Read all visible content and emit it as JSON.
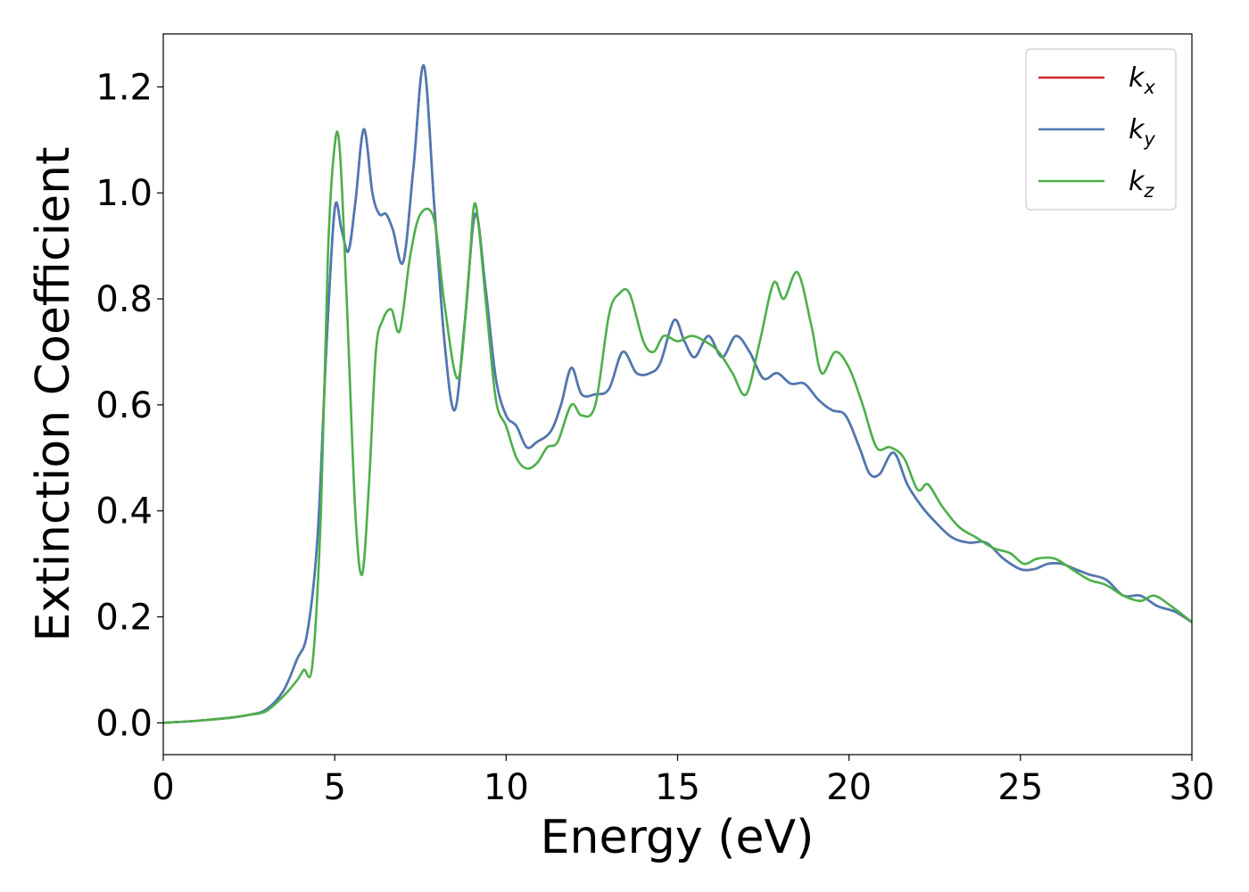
{
  "chart_data": {
    "type": "line",
    "title": "",
    "xlabel": "Energy (eV)",
    "ylabel": "Extinction Coefficient",
    "xlim": [
      0,
      30
    ],
    "ylim": [
      -0.06,
      1.3
    ],
    "xticks": [
      0,
      5,
      10,
      15,
      20,
      25,
      30
    ],
    "xtick_labels": [
      "0",
      "5",
      "10",
      "15",
      "20",
      "25",
      "30"
    ],
    "yticks": [
      0.0,
      0.2,
      0.4,
      0.6,
      0.8,
      1.0,
      1.2
    ],
    "ytick_labels": [
      "0.0",
      "0.2",
      "0.4",
      "0.6",
      "0.8",
      "1.0",
      "1.2"
    ],
    "grid": false,
    "legend_position": "top-right",
    "series": [
      {
        "name": "k_x",
        "label_base": "k",
        "label_sub": "x",
        "color": "#d62728",
        "x": [
          0,
          1,
          2,
          2.5,
          3.0,
          3.5,
          3.9,
          4.2,
          4.5,
          4.75,
          5.0,
          5.2,
          5.4,
          5.6,
          5.85,
          6.1,
          6.3,
          6.5,
          6.7,
          7.0,
          7.3,
          7.6,
          7.9,
          8.2,
          8.5,
          8.8,
          9.1,
          9.4,
          9.7,
          10.0,
          10.3,
          10.6,
          10.9,
          11.3,
          11.6,
          11.9,
          12.2,
          12.6,
          13.0,
          13.4,
          13.8,
          14.2,
          14.5,
          14.9,
          15.2,
          15.5,
          15.9,
          16.3,
          16.7,
          17.1,
          17.5,
          17.9,
          18.3,
          18.7,
          19.1,
          19.5,
          19.9,
          20.3,
          20.6,
          20.9,
          21.3,
          21.7,
          22.1,
          22.5,
          23.0,
          23.5,
          24.0,
          24.5,
          25.0,
          25.4,
          25.8,
          26.2,
          26.6,
          27.0,
          27.5,
          28.0,
          28.5,
          29.0,
          29.5,
          30.0
        ],
        "y": [
          0.0,
          0.004,
          0.01,
          0.015,
          0.025,
          0.06,
          0.12,
          0.17,
          0.35,
          0.7,
          0.97,
          0.93,
          0.89,
          0.98,
          1.12,
          1.0,
          0.96,
          0.96,
          0.93,
          0.87,
          1.05,
          1.24,
          0.98,
          0.72,
          0.59,
          0.76,
          0.96,
          0.82,
          0.65,
          0.58,
          0.56,
          0.52,
          0.53,
          0.55,
          0.6,
          0.67,
          0.62,
          0.62,
          0.63,
          0.7,
          0.66,
          0.66,
          0.68,
          0.76,
          0.72,
          0.69,
          0.73,
          0.69,
          0.73,
          0.7,
          0.65,
          0.66,
          0.64,
          0.64,
          0.61,
          0.59,
          0.58,
          0.52,
          0.47,
          0.47,
          0.51,
          0.45,
          0.41,
          0.38,
          0.35,
          0.34,
          0.34,
          0.31,
          0.29,
          0.29,
          0.3,
          0.3,
          0.29,
          0.28,
          0.27,
          0.24,
          0.24,
          0.22,
          0.21,
          0.19
        ]
      },
      {
        "name": "k_y",
        "label_base": "k",
        "label_sub": "y",
        "color": "#4a7ab5",
        "x": [
          0,
          1,
          2,
          2.5,
          3.0,
          3.5,
          3.9,
          4.2,
          4.5,
          4.75,
          5.0,
          5.2,
          5.4,
          5.6,
          5.85,
          6.1,
          6.3,
          6.5,
          6.7,
          7.0,
          7.3,
          7.6,
          7.9,
          8.2,
          8.5,
          8.8,
          9.1,
          9.4,
          9.7,
          10.0,
          10.3,
          10.6,
          10.9,
          11.3,
          11.6,
          11.9,
          12.2,
          12.6,
          13.0,
          13.4,
          13.8,
          14.2,
          14.5,
          14.9,
          15.2,
          15.5,
          15.9,
          16.3,
          16.7,
          17.1,
          17.5,
          17.9,
          18.3,
          18.7,
          19.1,
          19.5,
          19.9,
          20.3,
          20.6,
          20.9,
          21.3,
          21.7,
          22.1,
          22.5,
          23.0,
          23.5,
          24.0,
          24.5,
          25.0,
          25.4,
          25.8,
          26.2,
          26.6,
          27.0,
          27.5,
          28.0,
          28.5,
          29.0,
          29.5,
          30.0
        ],
        "y": [
          0.0,
          0.004,
          0.01,
          0.015,
          0.025,
          0.06,
          0.12,
          0.17,
          0.35,
          0.7,
          0.97,
          0.93,
          0.89,
          0.98,
          1.12,
          1.0,
          0.96,
          0.96,
          0.93,
          0.87,
          1.05,
          1.24,
          0.98,
          0.72,
          0.59,
          0.76,
          0.96,
          0.82,
          0.65,
          0.58,
          0.56,
          0.52,
          0.53,
          0.55,
          0.6,
          0.67,
          0.62,
          0.62,
          0.63,
          0.7,
          0.66,
          0.66,
          0.68,
          0.76,
          0.72,
          0.69,
          0.73,
          0.69,
          0.73,
          0.7,
          0.65,
          0.66,
          0.64,
          0.64,
          0.61,
          0.59,
          0.58,
          0.52,
          0.47,
          0.47,
          0.51,
          0.45,
          0.41,
          0.38,
          0.35,
          0.34,
          0.34,
          0.31,
          0.29,
          0.29,
          0.3,
          0.3,
          0.29,
          0.28,
          0.27,
          0.24,
          0.24,
          0.22,
          0.21,
          0.19
        ]
      },
      {
        "name": "k_z",
        "label_base": "k",
        "label_sub": "z",
        "color": "#4daf4a",
        "x": [
          0,
          1,
          2,
          2.5,
          3.0,
          3.5,
          3.9,
          4.1,
          4.35,
          4.6,
          4.8,
          5.0,
          5.15,
          5.35,
          5.6,
          5.8,
          6.0,
          6.2,
          6.4,
          6.65,
          6.9,
          7.2,
          7.5,
          7.9,
          8.2,
          8.6,
          8.9,
          9.1,
          9.4,
          9.7,
          10.0,
          10.3,
          10.6,
          10.9,
          11.2,
          11.5,
          11.9,
          12.2,
          12.6,
          13.0,
          13.3,
          13.6,
          14.0,
          14.3,
          14.6,
          15.0,
          15.4,
          15.8,
          16.2,
          16.6,
          17.0,
          17.4,
          17.8,
          18.1,
          18.5,
          18.9,
          19.2,
          19.6,
          20.0,
          20.4,
          20.8,
          21.2,
          21.6,
          22.0,
          22.3,
          22.7,
          23.2,
          23.7,
          24.2,
          24.7,
          25.1,
          25.5,
          26.0,
          26.5,
          27.0,
          27.5,
          28.0,
          28.5,
          28.9,
          29.4,
          30.0
        ],
        "y": [
          0.0,
          0.004,
          0.01,
          0.015,
          0.022,
          0.05,
          0.08,
          0.1,
          0.11,
          0.4,
          0.88,
          1.09,
          1.08,
          0.8,
          0.4,
          0.28,
          0.45,
          0.7,
          0.76,
          0.78,
          0.74,
          0.88,
          0.96,
          0.95,
          0.79,
          0.65,
          0.84,
          0.98,
          0.8,
          0.61,
          0.56,
          0.5,
          0.48,
          0.49,
          0.52,
          0.53,
          0.6,
          0.58,
          0.6,
          0.77,
          0.81,
          0.81,
          0.72,
          0.7,
          0.73,
          0.72,
          0.73,
          0.72,
          0.7,
          0.66,
          0.62,
          0.72,
          0.83,
          0.8,
          0.85,
          0.75,
          0.66,
          0.7,
          0.67,
          0.6,
          0.52,
          0.52,
          0.5,
          0.44,
          0.45,
          0.41,
          0.37,
          0.35,
          0.33,
          0.32,
          0.3,
          0.31,
          0.31,
          0.29,
          0.27,
          0.26,
          0.24,
          0.23,
          0.24,
          0.22,
          0.19
        ]
      }
    ]
  }
}
